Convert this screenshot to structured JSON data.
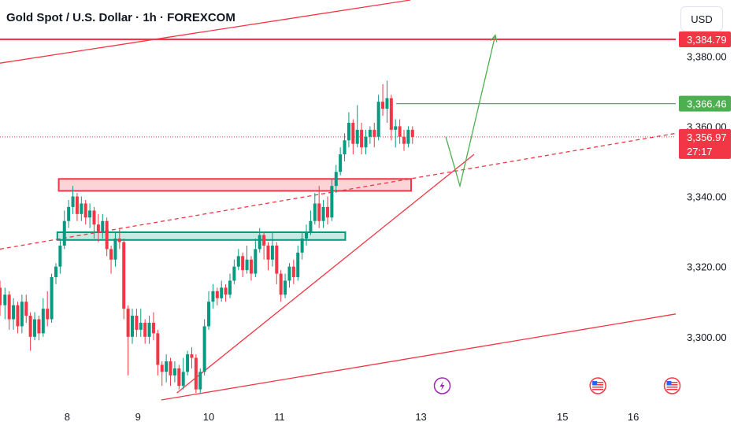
{
  "header": {
    "title": "Gold Spot / U.S. Dollar · 1h · FOREXCOM",
    "currency_button": "USD"
  },
  "chart_data": {
    "type": "candlestick",
    "symbol": "Gold Spot / U.S. Dollar",
    "interval": "1h",
    "source": "FOREXCOM",
    "ylim": [
      3282,
      3396
    ],
    "xlim": [
      7.05,
      16.6
    ],
    "y_ticks": [
      {
        "value": 3380,
        "label": "3,380.00"
      },
      {
        "value": 3360,
        "label": "3,360.00"
      },
      {
        "value": 3340,
        "label": "3,340.00"
      },
      {
        "value": 3320,
        "label": "3,320.00"
      },
      {
        "value": 3300,
        "label": "3,300.00"
      }
    ],
    "x_ticks": [
      {
        "value": 8,
        "label": "8"
      },
      {
        "value": 9,
        "label": "9"
      },
      {
        "value": 10,
        "label": "10"
      },
      {
        "value": 11,
        "label": "11"
      },
      {
        "value": 13,
        "label": "13"
      },
      {
        "value": 15,
        "label": "15"
      },
      {
        "value": 16,
        "label": "16"
      }
    ],
    "price_tags": [
      {
        "label": "3,384.79",
        "value": 3384.79,
        "color": "#f23645"
      },
      {
        "label": "3,366.46",
        "value": 3366.46,
        "color": "#4caf50"
      },
      {
        "label": "3,356.97",
        "countdown": "27:17",
        "value": 3356.97,
        "color": "#f23645"
      }
    ],
    "horizontal_lines": [
      {
        "value": 3384.79,
        "color": "#f23645",
        "style": "solid"
      },
      {
        "value": 3366.46,
        "color": "#4caf50",
        "style": "solid",
        "x_start": 12.65
      },
      {
        "value": 3356.97,
        "color": "#f23645",
        "style": "dotted"
      }
    ],
    "zones": [
      {
        "x": [
          7.88,
          12.86
        ],
        "y": [
          3341.6,
          3345.0
        ],
        "color": "#f23645"
      },
      {
        "x": [
          7.86,
          11.93
        ],
        "y": [
          3327.6,
          3329.8
        ],
        "color": "#089981"
      }
    ],
    "trendlines": [
      {
        "from": [
          7.05,
          3378
        ],
        "to": [
          12.85,
          3396
        ],
        "color": "#f23645",
        "style": "solid"
      },
      {
        "from": [
          9.33,
          3282
        ],
        "to": [
          16.6,
          3306.5
        ],
        "color": "#f23645",
        "style": "solid"
      },
      {
        "from": [
          7.05,
          3325
        ],
        "to": [
          16.6,
          3358
        ],
        "color": "#f23645",
        "style": "dashed"
      },
      {
        "from": [
          9.55,
          3284
        ],
        "to": [
          13.75,
          3352
        ],
        "color": "#f23645",
        "style": "solid"
      }
    ],
    "projection": {
      "points": [
        [
          13.35,
          3357
        ],
        [
          13.55,
          3343
        ],
        [
          14.05,
          3386
        ]
      ],
      "color": "#4caf50"
    },
    "candles": [
      [
        7.05,
        3314,
        3309,
        3316,
        3306
      ],
      [
        7.12,
        3309,
        3312,
        3314,
        3305
      ],
      [
        7.18,
        3312,
        3305,
        3313,
        3302
      ],
      [
        7.24,
        3305,
        3309,
        3311,
        3302
      ],
      [
        7.3,
        3309,
        3303,
        3310,
        3301
      ],
      [
        7.36,
        3303,
        3310,
        3312,
        3301
      ],
      [
        7.42,
        3310,
        3306,
        3312,
        3304
      ],
      [
        7.48,
        3306,
        3300,
        3307,
        3296
      ],
      [
        7.54,
        3300,
        3305,
        3307,
        3299
      ],
      [
        7.6,
        3305,
        3301,
        3306,
        3299
      ],
      [
        7.66,
        3301,
        3308,
        3311,
        3300
      ],
      [
        7.72,
        3308,
        3305,
        3313,
        3303
      ],
      [
        7.78,
        3305,
        3317,
        3318,
        3304
      ],
      [
        7.84,
        3317,
        3320,
        3321,
        3315
      ],
      [
        7.9,
        3320,
        3326,
        3328,
        3318
      ],
      [
        7.96,
        3326,
        3333,
        3336,
        3325
      ],
      [
        8.02,
        3333,
        3337,
        3339,
        3331
      ],
      [
        8.08,
        3337,
        3340,
        3343,
        3335
      ],
      [
        8.14,
        3340,
        3335,
        3341,
        3333
      ],
      [
        8.2,
        3335,
        3338,
        3340,
        3333
      ],
      [
        8.26,
        3338,
        3334,
        3339,
        3332
      ],
      [
        8.32,
        3334,
        3336,
        3338,
        3331
      ],
      [
        8.38,
        3336,
        3332,
        3337,
        3328
      ],
      [
        8.44,
        3332,
        3330,
        3335,
        3327
      ],
      [
        8.5,
        3330,
        3333,
        3335,
        3328
      ],
      [
        8.56,
        3333,
        3325,
        3334,
        3323
      ],
      [
        8.62,
        3325,
        3322,
        3326,
        3318
      ],
      [
        8.68,
        3322,
        3328,
        3330,
        3320
      ],
      [
        8.74,
        3328,
        3327,
        3331,
        3325
      ],
      [
        8.8,
        3327,
        3308,
        3328,
        3305
      ],
      [
        8.86,
        3308,
        3300,
        3309,
        3289
      ],
      [
        8.92,
        3300,
        3306,
        3308,
        3298
      ],
      [
        8.98,
        3306,
        3302,
        3308,
        3300
      ],
      [
        9.04,
        3302,
        3304,
        3308,
        3300
      ],
      [
        9.1,
        3304,
        3300,
        3305,
        3298
      ],
      [
        9.16,
        3300,
        3304,
        3306,
        3298
      ],
      [
        9.22,
        3304,
        3301,
        3307,
        3299
      ],
      [
        9.28,
        3301,
        3292,
        3302,
        3289
      ],
      [
        9.34,
        3292,
        3290,
        3293,
        3286
      ],
      [
        9.4,
        3290,
        3293,
        3295,
        3287
      ],
      [
        9.46,
        3293,
        3289,
        3294,
        3286
      ],
      [
        9.52,
        3289,
        3291,
        3293,
        3287
      ],
      [
        9.58,
        3291,
        3286,
        3292,
        3285
      ],
      [
        9.64,
        3286,
        3290,
        3294,
        3285
      ],
      [
        9.7,
        3290,
        3295,
        3296,
        3289
      ],
      [
        9.76,
        3295,
        3294,
        3297,
        3291
      ],
      [
        9.82,
        3294,
        3285,
        3295,
        3284
      ],
      [
        9.88,
        3285,
        3290,
        3291,
        3284
      ],
      [
        9.94,
        3290,
        3303,
        3305,
        3289
      ],
      [
        10.0,
        3303,
        3310,
        3313,
        3302
      ],
      [
        10.06,
        3310,
        3313,
        3315,
        3308
      ],
      [
        10.12,
        3313,
        3311,
        3314,
        3309
      ],
      [
        10.18,
        3311,
        3314,
        3316,
        3310
      ],
      [
        10.24,
        3314,
        3312,
        3315,
        3310
      ],
      [
        10.3,
        3312,
        3316,
        3318,
        3311
      ],
      [
        10.36,
        3316,
        3320,
        3322,
        3315
      ],
      [
        10.42,
        3320,
        3323,
        3325,
        3319
      ],
      [
        10.48,
        3323,
        3319,
        3324,
        3317
      ],
      [
        10.54,
        3319,
        3322,
        3326,
        3318
      ],
      [
        10.6,
        3322,
        3318,
        3323,
        3316
      ],
      [
        10.66,
        3318,
        3325,
        3328,
        3317
      ],
      [
        10.72,
        3325,
        3329,
        3331,
        3324
      ],
      [
        10.78,
        3329,
        3326,
        3330,
        3322
      ],
      [
        10.84,
        3326,
        3322,
        3327,
        3319
      ],
      [
        10.9,
        3322,
        3326,
        3330,
        3320
      ],
      [
        10.96,
        3326,
        3318,
        3327,
        3315
      ],
      [
        11.02,
        3318,
        3312,
        3319,
        3310
      ],
      [
        11.08,
        3312,
        3316,
        3318,
        3311
      ],
      [
        11.14,
        3316,
        3320,
        3321,
        3314
      ],
      [
        11.2,
        3320,
        3317,
        3322,
        3315
      ],
      [
        11.26,
        3317,
        3324,
        3326,
        3316
      ],
      [
        11.32,
        3324,
        3328,
        3330,
        3322
      ],
      [
        11.38,
        3328,
        3330,
        3332,
        3326
      ],
      [
        11.44,
        3330,
        3333,
        3336,
        3329
      ],
      [
        11.5,
        3333,
        3338,
        3341,
        3332
      ],
      [
        11.56,
        3338,
        3333,
        3343,
        3331
      ],
      [
        11.62,
        3333,
        3337,
        3339,
        3331
      ],
      [
        11.68,
        3337,
        3334,
        3340,
        3332
      ],
      [
        11.74,
        3334,
        3343,
        3345,
        3333
      ],
      [
        11.8,
        3343,
        3347,
        3349,
        3341
      ],
      [
        11.86,
        3347,
        3352,
        3354,
        3346
      ],
      [
        11.92,
        3352,
        3356,
        3358,
        3350
      ],
      [
        11.98,
        3356,
        3361,
        3364,
        3354
      ],
      [
        12.04,
        3361,
        3355,
        3362,
        3352
      ],
      [
        12.1,
        3355,
        3359,
        3366,
        3354
      ],
      [
        12.16,
        3359,
        3354,
        3361,
        3352
      ],
      [
        12.22,
        3354,
        3357,
        3359,
        3352
      ],
      [
        12.28,
        3357,
        3359,
        3360,
        3355
      ],
      [
        12.34,
        3359,
        3357,
        3361,
        3354
      ],
      [
        12.4,
        3357,
        3367,
        3369,
        3356
      ],
      [
        12.46,
        3367,
        3365,
        3372,
        3363
      ],
      [
        12.52,
        3365,
        3368,
        3373,
        3361
      ],
      [
        12.58,
        3368,
        3359,
        3369,
        3356
      ],
      [
        12.64,
        3359,
        3360,
        3362,
        3354
      ],
      [
        12.7,
        3360,
        3357,
        3362,
        3355
      ],
      [
        12.76,
        3357,
        3355,
        3359,
        3353
      ],
      [
        12.82,
        3355,
        3359,
        3360,
        3354
      ],
      [
        12.88,
        3359,
        3356.97,
        3360,
        3355
      ]
    ]
  },
  "event_markers": [
    {
      "icon": "lightning-icon",
      "date": 13.3,
      "color": "#9c27b0"
    },
    {
      "icon": "us-flag-icon",
      "date": 15.5
    },
    {
      "icon": "us-flag-icon",
      "date": 16.55
    }
  ]
}
